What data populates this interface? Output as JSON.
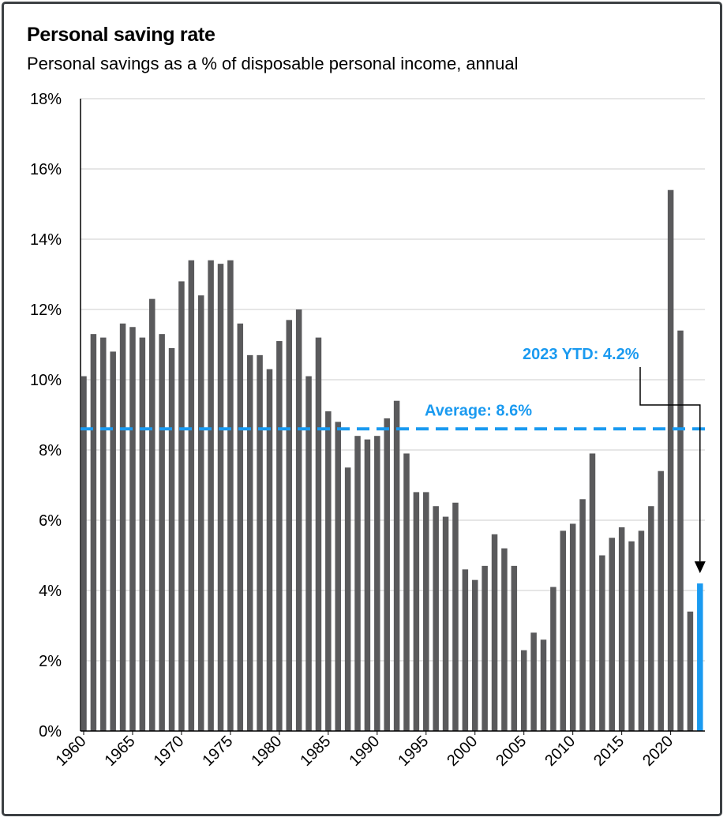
{
  "chart_data": {
    "type": "bar",
    "title": "Personal saving rate",
    "subtitle": "Personal savings as a % of disposable personal income, annual",
    "xlabel": "",
    "ylabel": "",
    "ylim": [
      0,
      18
    ],
    "yticks": [
      "0%",
      "2%",
      "4%",
      "6%",
      "8%",
      "10%",
      "12%",
      "14%",
      "16%",
      "18%"
    ],
    "xticks": [
      "1960",
      "1965",
      "1970",
      "1975",
      "1980",
      "1985",
      "1990",
      "1995",
      "2000",
      "2005",
      "2010",
      "2015",
      "2020"
    ],
    "grid": true,
    "x": [
      1960,
      1961,
      1962,
      1963,
      1964,
      1965,
      1966,
      1967,
      1968,
      1969,
      1970,
      1971,
      1972,
      1973,
      1974,
      1975,
      1976,
      1977,
      1978,
      1979,
      1980,
      1981,
      1982,
      1983,
      1984,
      1985,
      1986,
      1987,
      1988,
      1989,
      1990,
      1991,
      1992,
      1993,
      1994,
      1995,
      1996,
      1997,
      1998,
      1999,
      2000,
      2001,
      2002,
      2003,
      2004,
      2005,
      2006,
      2007,
      2008,
      2009,
      2010,
      2011,
      2012,
      2013,
      2014,
      2015,
      2016,
      2017,
      2018,
      2019,
      2020,
      2021,
      2022,
      2023
    ],
    "values": [
      10.1,
      11.3,
      11.2,
      10.8,
      11.6,
      11.5,
      11.2,
      12.3,
      11.3,
      10.9,
      12.8,
      13.4,
      12.4,
      13.4,
      13.3,
      13.4,
      11.6,
      10.7,
      10.7,
      10.3,
      11.1,
      11.7,
      12.0,
      10.1,
      11.2,
      9.1,
      8.8,
      7.5,
      8.4,
      8.3,
      8.4,
      8.9,
      9.4,
      7.9,
      6.8,
      6.8,
      6.4,
      6.1,
      6.5,
      4.6,
      4.3,
      4.7,
      5.6,
      5.2,
      4.7,
      2.3,
      2.8,
      2.6,
      4.1,
      5.7,
      5.9,
      6.6,
      7.9,
      5.0,
      5.5,
      5.8,
      5.4,
      5.7,
      6.4,
      7.4,
      15.4,
      11.4,
      3.4,
      4.2
    ],
    "highlight_year": 2023,
    "colors": {
      "bar": "#5a5a5c",
      "highlight": "#1a9af0",
      "grid": "#cccccc",
      "axis": "#000000"
    },
    "average": {
      "value": 8.6,
      "label": "Average: 8.6%"
    },
    "ytd_annotation": {
      "label": "2023 YTD: 4.2%"
    }
  }
}
